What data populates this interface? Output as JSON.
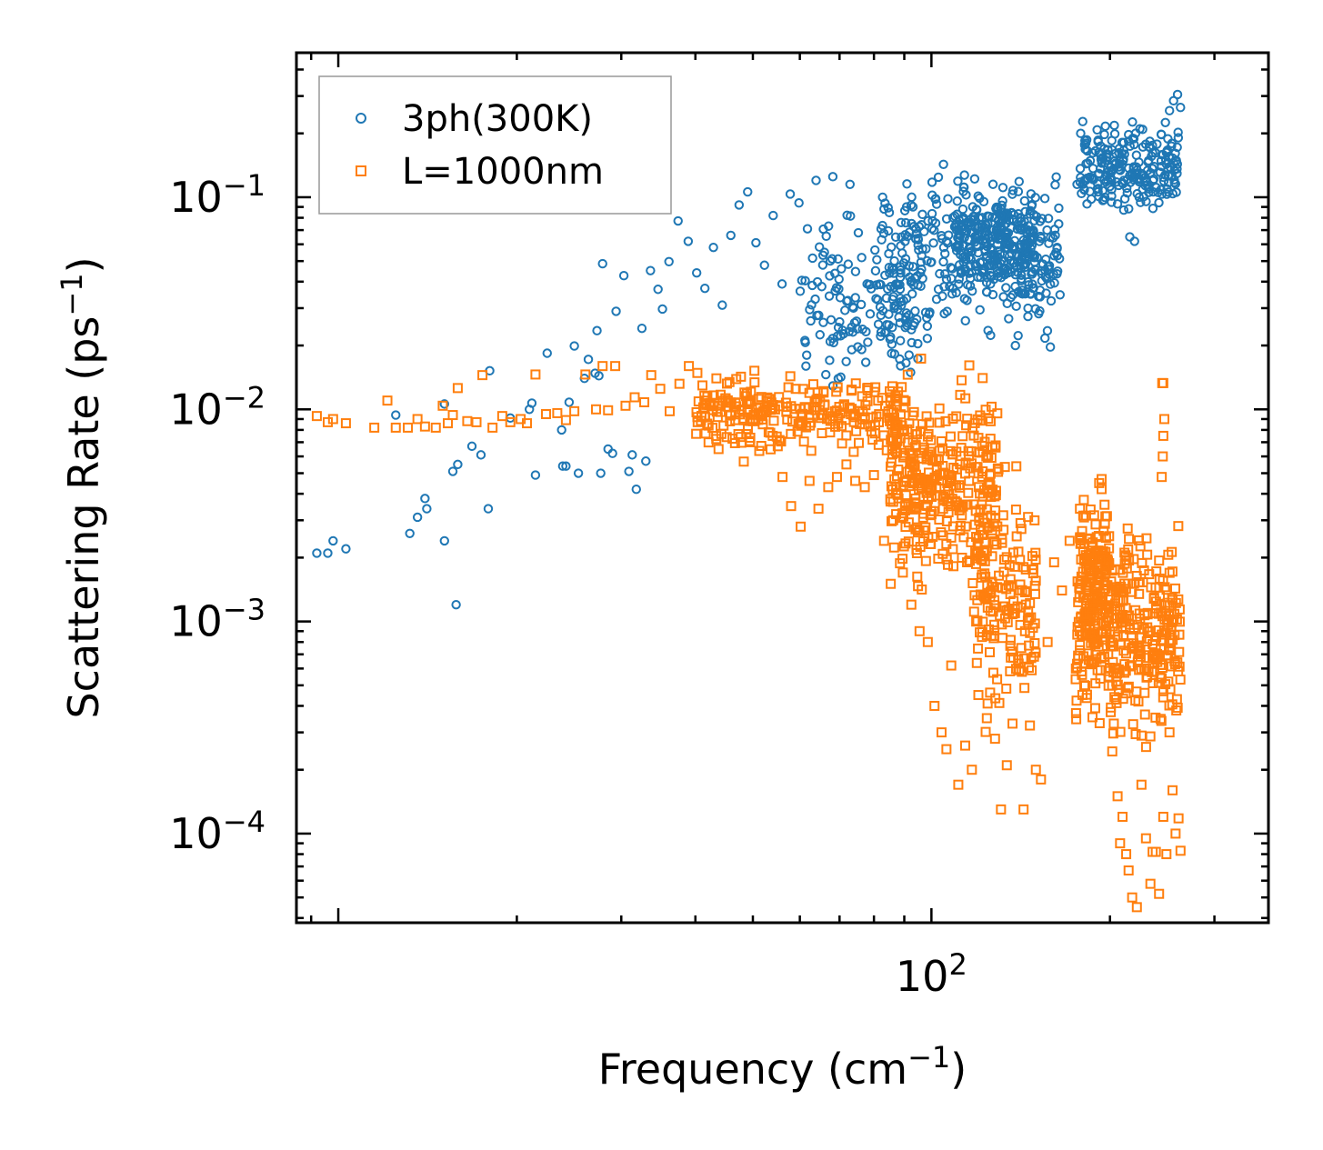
{
  "chart_data": {
    "type": "scatter",
    "title": "",
    "xlabel": "Frequency (cm",
    "xlabel_sup": "−1",
    "xlabel_close": ")",
    "ylabel": "Scattering Rate (ps",
    "ylabel_sup": "−1",
    "ylabel_close": ")",
    "x_scale": "log",
    "y_scale": "log",
    "xlim": [
      8.5,
      370
    ],
    "ylim": [
      3.8e-05,
      0.48
    ],
    "x_tick_labels": [
      {
        "value": 100,
        "base": "10",
        "exp": "2"
      }
    ],
    "y_tick_labels": [
      {
        "value": 0.1,
        "base": "10",
        "exp": "−1"
      },
      {
        "value": 0.01,
        "base": "10",
        "exp": "−2"
      },
      {
        "value": 0.001,
        "base": "10",
        "exp": "−3"
      },
      {
        "value": 0.0001,
        "base": "10",
        "exp": "−4"
      }
    ],
    "legend_position": "top-left",
    "series": [
      {
        "name": "3ph(300K)",
        "marker": "circle",
        "color": "#1f77b4",
        "points": [
          [
            9.2,
            0.0021
          ],
          [
            9.6,
            0.0021
          ],
          [
            9.8,
            0.0024
          ],
          [
            10.3,
            0.0022
          ],
          [
            12.5,
            0.0094
          ],
          [
            13.2,
            0.0026
          ],
          [
            13.6,
            0.0031
          ],
          [
            14.0,
            0.0038
          ],
          [
            14.1,
            0.0034
          ],
          [
            15.1,
            0.0024
          ],
          [
            15.1,
            0.0106
          ],
          [
            15.6,
            0.0051
          ],
          [
            15.8,
            0.0012
          ],
          [
            15.9,
            0.0055
          ],
          [
            16.8,
            0.0067
          ],
          [
            17.4,
            0.0061
          ],
          [
            17.9,
            0.0034
          ],
          [
            18.0,
            0.0152
          ],
          [
            19.5,
            0.0091
          ],
          [
            21.0,
            0.01
          ],
          [
            21.2,
            0.0107
          ],
          [
            21.5,
            0.0049
          ],
          [
            22.5,
            0.0184
          ],
          [
            23.8,
            0.008
          ],
          [
            23.9,
            0.0054
          ],
          [
            24.2,
            0.0054
          ],
          [
            24.5,
            0.0108
          ],
          [
            25.0,
            0.0199
          ],
          [
            25.4,
            0.005
          ],
          [
            26.0,
            0.014
          ],
          [
            26.4,
            0.0172
          ],
          [
            27.1,
            0.0148
          ],
          [
            27.3,
            0.0235
          ],
          [
            27.5,
            0.0144
          ],
          [
            27.7,
            0.005
          ],
          [
            27.9,
            0.0486
          ],
          [
            28.5,
            0.0065
          ],
          [
            29.0,
            0.0062
          ],
          [
            29.4,
            0.029
          ],
          [
            30.3,
            0.0427
          ],
          [
            30.9,
            0.0051
          ],
          [
            31.3,
            0.0061
          ],
          [
            31.8,
            0.0042
          ],
          [
            32.5,
            0.0241
          ],
          [
            33.0,
            0.0057
          ],
          [
            33.6,
            0.0451
          ],
          [
            34.6,
            0.0368
          ],
          [
            35.2,
            0.0297
          ],
          [
            36.1,
            0.0497
          ],
          [
            37.4,
            0.0773
          ],
          [
            38.9,
            0.062
          ],
          [
            40.2,
            0.044
          ],
          [
            41.5,
            0.0372
          ],
          [
            42.9,
            0.058
          ],
          [
            44.4,
            0.031
          ],
          [
            45.9,
            0.0661
          ],
          [
            47.4,
            0.092
          ],
          [
            49.0,
            0.106
          ],
          [
            50.6,
            0.061
          ],
          [
            52.3,
            0.0478
          ],
          [
            54.1,
            0.082
          ],
          [
            56.0,
            0.039
          ],
          [
            57.8,
            0.1035
          ],
          [
            59.8,
            0.094
          ],
          [
            61.8,
            0.071
          ],
          [
            63.9,
            0.12
          ],
          [
            66.0,
            0.055
          ],
          [
            68.2,
            0.125
          ],
          [
            70.5,
            0.046
          ],
          [
            72.9,
            0.115
          ],
          [
            75.3,
            0.068
          ],
          [
            77.9,
            0.039
          ],
          [
            80.5,
            0.045
          ],
          [
            83.2,
            0.088
          ],
          [
            86.0,
            0.033
          ],
          [
            88.9,
            0.076
          ],
          [
            91.9,
            0.042
          ],
          [
            95.0,
            0.063
          ],
          [
            98.2,
            0.027
          ],
          [
            101.5,
            0.098
          ],
          [
            104.9,
            0.058
          ],
          [
            108.4,
            0.035
          ],
          [
            112.0,
            0.072
          ],
          [
            115.8,
            0.052
          ],
          [
            119.7,
            0.042
          ],
          [
            123.7,
            0.061
          ],
          [
            127.9,
            0.053
          ],
          [
            132.2,
            0.046
          ],
          [
            136.6,
            0.054
          ],
          [
            141.2,
            0.058
          ],
          [
            145.9,
            0.055
          ],
          [
            150.8,
            0.052
          ],
          [
            155.9,
            0.051
          ],
          [
            161.1,
            0.053
          ],
          [
            176.0,
            0.115
          ],
          [
            181.0,
            0.12
          ],
          [
            186.0,
            0.098
          ],
          [
            191.0,
            0.106
          ],
          [
            196.0,
            0.145
          ],
          [
            201.0,
            0.122
          ],
          [
            206.0,
            0.093
          ],
          [
            211.0,
            0.087
          ],
          [
            216.0,
            0.065
          ],
          [
            220.0,
            0.062
          ],
          [
            224.0,
            0.1
          ],
          [
            228.0,
            0.123
          ],
          [
            232.0,
            0.146
          ],
          [
            236.0,
            0.162
          ],
          [
            240.0,
            0.178
          ],
          [
            244.0,
            0.198
          ],
          [
            248.0,
            0.225
          ],
          [
            252.0,
            0.256
          ],
          [
            256.0,
            0.285
          ],
          [
            260.0,
            0.305
          ],
          [
            263.0,
            0.265
          ]
        ],
        "clusters": [
          {
            "x_range": [
              82,
              165
            ],
            "y_center": 0.052,
            "spread": 2.2,
            "count": 320
          },
          {
            "x_range": [
              110,
              150
            ],
            "y_center": 0.065,
            "spread": 1.7,
            "count": 220
          },
          {
            "x_range": [
              60,
              95
            ],
            "y_center": 0.03,
            "spread": 2.3,
            "count": 140
          },
          {
            "x_range": [
              178,
              262
            ],
            "y_center": 0.14,
            "spread": 1.5,
            "count": 220
          }
        ]
      },
      {
        "name": "L=1000nm",
        "marker": "square",
        "color": "#ff7f0e",
        "points": [
          [
            9.2,
            0.0093
          ],
          [
            9.6,
            0.0087
          ],
          [
            9.8,
            0.009
          ],
          [
            10.3,
            0.0086
          ],
          [
            11.5,
            0.0082
          ],
          [
            12.1,
            0.011
          ],
          [
            12.5,
            0.0082
          ],
          [
            13.1,
            0.0082
          ],
          [
            13.6,
            0.009
          ],
          [
            14.0,
            0.0083
          ],
          [
            14.6,
            0.0082
          ],
          [
            15.0,
            0.0104
          ],
          [
            15.3,
            0.0086
          ],
          [
            15.6,
            0.0094
          ],
          [
            15.9,
            0.0126
          ],
          [
            16.5,
            0.0088
          ],
          [
            17.1,
            0.0087
          ],
          [
            17.5,
            0.0145
          ],
          [
            18.2,
            0.0082
          ],
          [
            18.9,
            0.0093
          ],
          [
            19.5,
            0.0087
          ],
          [
            20.3,
            0.009
          ],
          [
            20.8,
            0.0086
          ],
          [
            21.5,
            0.0146
          ],
          [
            22.4,
            0.0095
          ],
          [
            23.4,
            0.0096
          ],
          [
            24.2,
            0.0089
          ],
          [
            25.0,
            0.0098
          ],
          [
            26.1,
            0.0146
          ],
          [
            27.2,
            0.01
          ],
          [
            27.9,
            0.016
          ],
          [
            28.5,
            0.0099
          ],
          [
            29.3,
            0.016
          ],
          [
            30.5,
            0.0104
          ],
          [
            31.6,
            0.0114
          ],
          [
            32.8,
            0.0108
          ],
          [
            33.7,
            0.0145
          ],
          [
            34.9,
            0.0125
          ],
          [
            36.2,
            0.0098
          ],
          [
            37.6,
            0.0132
          ],
          [
            39.0,
            0.016
          ],
          [
            40.5,
            0.0109
          ],
          [
            41.9,
            0.0115
          ],
          [
            43.4,
            0.014
          ],
          [
            45.0,
            0.0103
          ],
          [
            46.7,
            0.0089
          ],
          [
            48.4,
            0.012
          ],
          [
            50.3,
            0.0152
          ],
          [
            52.1,
            0.0098
          ],
          [
            54.0,
            0.0075
          ],
          [
            56.1,
            0.0048
          ],
          [
            58.0,
            0.0035
          ],
          [
            60.2,
            0.0028
          ],
          [
            62.3,
            0.0046
          ],
          [
            64.5,
            0.0034
          ],
          [
            67.0,
            0.0043
          ],
          [
            69.3,
            0.0048
          ],
          [
            71.9,
            0.0055
          ],
          [
            74.4,
            0.0046
          ],
          [
            77.2,
            0.0043
          ],
          [
            80.0,
            0.0049
          ],
          [
            83.2,
            0.0024
          ],
          [
            86.2,
            0.003
          ],
          [
            89.5,
            0.0017
          ],
          [
            92.5,
            0.0012
          ],
          [
            95.5,
            0.0009
          ],
          [
            98.6,
            0.0008
          ],
          [
            101.2,
            0.0004
          ],
          [
            104.0,
            0.0003
          ],
          [
            106.0,
            0.00025
          ],
          [
            108.0,
            0.00062
          ],
          [
            111.0,
            0.00017
          ],
          [
            114.0,
            0.00026
          ],
          [
            117.0,
            0.0002
          ],
          [
            120.0,
            0.00045
          ],
          [
            124.0,
            0.00035
          ],
          [
            128.0,
            0.00028
          ],
          [
            131.0,
            0.00013
          ],
          [
            134.0,
            0.00021
          ],
          [
            137.0,
            0.00033
          ],
          [
            140.0,
            0.00066
          ],
          [
            143.0,
            0.00013
          ],
          [
            146.0,
            0.00077
          ],
          [
            150.0,
            0.0002
          ],
          [
            153.0,
            0.00018
          ],
          [
            157.0,
            0.0008
          ],
          [
            161.0,
            0.0019
          ],
          [
            166.0,
            0.0014
          ],
          [
            171.0,
            0.0024
          ],
          [
            178.0,
            0.0034
          ],
          [
            183.0,
            0.002
          ],
          [
            186.0,
            0.0011
          ],
          [
            190.0,
            0.0025
          ],
          [
            193.0,
            0.0013
          ],
          [
            197.0,
            0.0009
          ],
          [
            200.0,
            0.0006
          ],
          [
            203.0,
            0.00033
          ],
          [
            206.0,
            0.00015
          ],
          [
            208.0,
            9e-05
          ],
          [
            210.0,
            0.00012
          ],
          [
            213.0,
            8e-05
          ],
          [
            215.0,
            6.7e-05
          ],
          [
            218.0,
            5e-05
          ],
          [
            222.0,
            4.5e-05
          ],
          [
            226.0,
            0.00017
          ],
          [
            230.0,
            9.5e-05
          ],
          [
            234.0,
            5.8e-05
          ],
          [
            236.0,
            8.2e-05
          ],
          [
            239.0,
            8.2e-05
          ],
          [
            242.0,
            5.2e-05
          ],
          [
            246.0,
            0.00012
          ],
          [
            249.0,
            8e-05
          ],
          [
            252.0,
            0.0003
          ],
          [
            255.0,
            0.00016
          ],
          [
            258.0,
            0.0001
          ],
          [
            261.0,
            0.000118
          ],
          [
            263.0,
            8.3e-05
          ],
          [
            245.0,
            0.0133
          ],
          [
            246.0,
            0.0133
          ],
          [
            247.0,
            0.009
          ],
          [
            246.0,
            0.0075
          ],
          [
            245.5,
            0.006
          ],
          [
            244.5,
            0.0048
          ]
        ],
        "clusters": [
          {
            "x_range": [
              40,
              90
            ],
            "y_center": 0.0095,
            "spread": 1.5,
            "count": 260
          },
          {
            "x_range": [
              85,
              130
            ],
            "y_center": 0.0045,
            "spread": 2.6,
            "count": 340
          },
          {
            "x_range": [
              118,
              150
            ],
            "y_center": 0.0012,
            "spread": 3.0,
            "count": 160
          },
          {
            "x_range": [
              175,
              263
            ],
            "y_center": 0.0009,
            "spread": 2.8,
            "count": 380
          },
          {
            "x_range": [
              178,
              200
            ],
            "y_center": 0.0018,
            "spread": 2.0,
            "count": 120
          }
        ]
      }
    ]
  }
}
